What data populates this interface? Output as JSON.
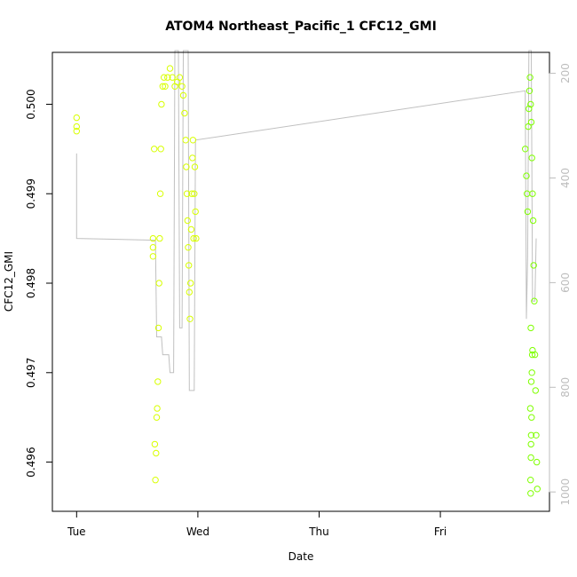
{
  "chart_data": {
    "type": "scatter",
    "title": "ATOM4 Northeast_Pacific_1 CFC12_GMI",
    "xlabel": "Date",
    "ylabel": "CFC12_GMI",
    "x_ticks": [
      "Tue",
      "Wed",
      "Thu",
      "Fri"
    ],
    "x_tick_values": [
      0,
      1,
      2,
      3
    ],
    "xlim": [
      -0.2,
      3.9
    ],
    "ylim": [
      0.49545,
      0.50058
    ],
    "y_ticks": [
      0.496,
      0.497,
      0.498,
      0.499,
      0.5
    ],
    "y_right_ticks": [
      200,
      400,
      600,
      800,
      1000
    ],
    "y_right_lim": [
      1037,
      160
    ],
    "grid": false,
    "legend": "none",
    "colors": {
      "early": "#d8ff00",
      "late": "#7fff00",
      "profile_line": "#c0c0c0",
      "frame": "#000000",
      "right_axis": "#bdbdbd"
    },
    "series": [
      {
        "points": [
          [
            0.0,
            0.49985
          ],
          [
            0.0,
            0.49975
          ],
          [
            0.0,
            0.4997
          ],
          [
            0.63,
            0.4984
          ],
          [
            0.63,
            0.4985
          ],
          [
            0.63,
            0.4983
          ],
          [
            0.64,
            0.4995
          ],
          [
            0.645,
            0.4962
          ],
          [
            0.65,
            0.4958
          ],
          [
            0.655,
            0.4961
          ],
          [
            0.66,
            0.4965
          ],
          [
            0.665,
            0.4966
          ],
          [
            0.67,
            0.4969
          ],
          [
            0.675,
            0.4975
          ],
          [
            0.68,
            0.498
          ],
          [
            0.685,
            0.4985
          ],
          [
            0.69,
            0.499
          ],
          [
            0.695,
            0.4995
          ],
          [
            0.7,
            0.5
          ],
          [
            0.71,
            0.5002
          ],
          [
            0.72,
            0.5003
          ],
          [
            0.73,
            0.5002
          ],
          [
            0.75,
            0.5003
          ],
          [
            0.77,
            0.5004
          ],
          [
            0.79,
            0.5003
          ],
          [
            0.81,
            0.5002
          ],
          [
            0.83,
            0.50025
          ],
          [
            0.85,
            0.5003
          ],
          [
            0.87,
            0.5002
          ],
          [
            0.88,
            0.5001
          ],
          [
            0.89,
            0.4999
          ],
          [
            0.9,
            0.4996
          ],
          [
            0.905,
            0.4993
          ],
          [
            0.91,
            0.499
          ],
          [
            0.915,
            0.4987
          ],
          [
            0.92,
            0.4984
          ],
          [
            0.925,
            0.4982
          ],
          [
            0.93,
            0.4979
          ],
          [
            0.935,
            0.4976
          ],
          [
            0.94,
            0.498
          ],
          [
            0.945,
            0.4986
          ],
          [
            0.95,
            0.499
          ],
          [
            0.955,
            0.4994
          ],
          [
            0.96,
            0.4996
          ],
          [
            0.965,
            0.4985
          ],
          [
            0.97,
            0.499
          ],
          [
            0.975,
            0.4993
          ],
          [
            0.98,
            0.4988
          ],
          [
            0.985,
            0.4985
          ]
        ]
      },
      {
        "points": [
          [
            3.7,
            0.4995
          ],
          [
            3.71,
            0.4992
          ],
          [
            3.715,
            0.499
          ],
          [
            3.72,
            0.4988
          ],
          [
            3.725,
            0.49975
          ],
          [
            3.73,
            0.49995
          ],
          [
            3.735,
            0.50015
          ],
          [
            3.74,
            0.5003
          ],
          [
            3.745,
            0.5
          ],
          [
            3.75,
            0.4998
          ],
          [
            3.755,
            0.4994
          ],
          [
            3.76,
            0.499
          ],
          [
            3.765,
            0.4987
          ],
          [
            3.77,
            0.4982
          ],
          [
            3.775,
            0.4978
          ],
          [
            3.78,
            0.4972
          ],
          [
            3.785,
            0.4968
          ],
          [
            3.79,
            0.4963
          ],
          [
            3.795,
            0.496
          ],
          [
            3.8,
            0.4957
          ],
          [
            3.742,
            0.4966
          ],
          [
            3.748,
            0.4962
          ],
          [
            3.744,
            0.4958
          ],
          [
            3.746,
            0.4975
          ],
          [
            3.75,
            0.4969
          ],
          [
            3.752,
            0.4965
          ],
          [
            3.755,
            0.497
          ],
          [
            3.758,
            0.4972
          ],
          [
            3.76,
            0.49725
          ],
          [
            3.745,
            0.49565
          ],
          [
            3.747,
            0.49605
          ],
          [
            3.749,
            0.4963
          ]
        ]
      }
    ],
    "profile_line": [
      [
        0.0,
        0.49945
      ],
      [
        0.0,
        0.4985
      ],
      [
        0.65,
        0.49848
      ],
      [
        0.66,
        0.4974
      ],
      [
        0.7,
        0.4974
      ],
      [
        0.71,
        0.4972
      ],
      [
        0.76,
        0.4972
      ],
      [
        0.77,
        0.497
      ],
      [
        0.8,
        0.497
      ],
      [
        0.81,
        0.5006
      ],
      [
        0.84,
        0.5006
      ],
      [
        0.85,
        0.4975
      ],
      [
        0.87,
        0.4975
      ],
      [
        0.88,
        0.5006
      ],
      [
        0.92,
        0.5006
      ],
      [
        0.93,
        0.4968
      ],
      [
        0.97,
        0.4968
      ],
      [
        0.98,
        0.4996
      ],
      [
        3.7,
        0.50015
      ],
      [
        3.71,
        0.4976
      ],
      [
        3.72,
        0.4983
      ],
      [
        3.73,
        0.5006
      ],
      [
        3.75,
        0.5006
      ],
      [
        3.76,
        0.4978
      ],
      [
        3.78,
        0.4978
      ],
      [
        3.79,
        0.4985
      ]
    ]
  }
}
